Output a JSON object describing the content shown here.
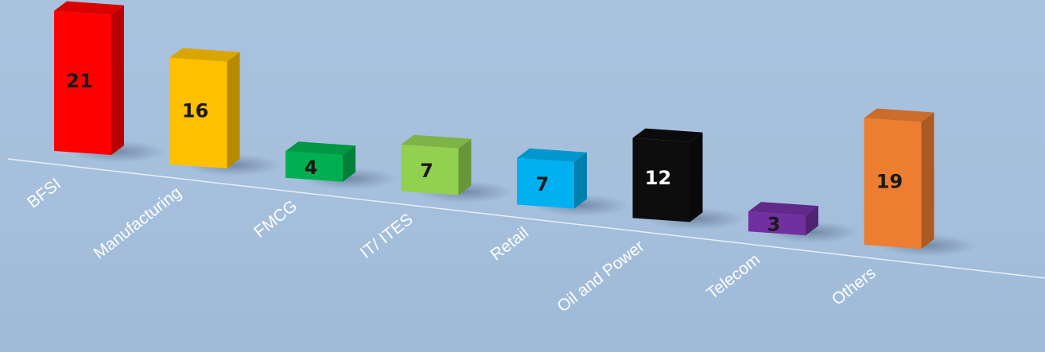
{
  "chart_data": {
    "type": "bar",
    "title": "",
    "xlabel": "",
    "ylabel": "",
    "categories": [
      "BFSI",
      "Manufacturing",
      "FMCG",
      "IT/ ITES",
      "Retail",
      "Oil and Power",
      "Telecom",
      "Others"
    ],
    "values": [
      21,
      16,
      4,
      7,
      7,
      12,
      3,
      19
    ],
    "grid": false,
    "legend": "none",
    "colors": [
      "#ff0000",
      "#ffc000",
      "#00b050",
      "#92d050",
      "#00b0f0",
      "#0d0d0d",
      "#7030a0",
      "#ed7d31"
    ],
    "label_colors": [
      "#1a1a1a",
      "#1a1a1a",
      "#1a1a1a",
      "#1a1a1a",
      "#1a1a1a",
      "#ffffff",
      "#1a1a1a",
      "#1a1a1a"
    ]
  }
}
